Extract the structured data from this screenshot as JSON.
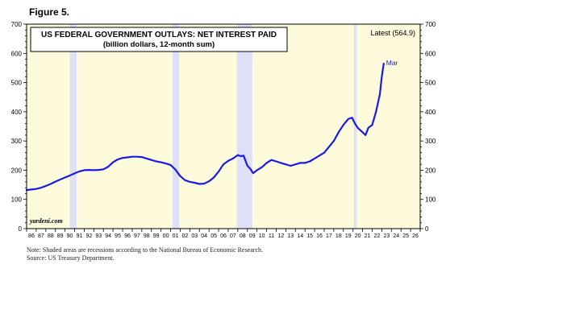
{
  "figure_label": "Figure 5.",
  "chart_data": {
    "type": "line",
    "title": "US FEDERAL GOVERNMENT OUTLAYS: NET INTEREST PAID",
    "subtitle": "(billion dollars, 12-month sum)",
    "latest_label": "Latest (564.9)",
    "end_label": "Mar",
    "watermark": "yardeni.com",
    "ylim": [
      0,
      700
    ],
    "yticks": [
      0,
      100,
      200,
      300,
      400,
      500,
      600,
      700
    ],
    "xlim": [
      1986.0,
      2027.0
    ],
    "xtick_labels": [
      "86",
      "87",
      "88",
      "89",
      "90",
      "91",
      "92",
      "93",
      "94",
      "95",
      "96",
      "97",
      "98",
      "99",
      "00",
      "01",
      "02",
      "03",
      "04",
      "05",
      "06",
      "07",
      "08",
      "09",
      "10",
      "11",
      "12",
      "13",
      "14",
      "15",
      "16",
      "17",
      "18",
      "19",
      "20",
      "21",
      "22",
      "23",
      "24",
      "25",
      "26"
    ],
    "recessions": [
      [
        1990.5,
        1991.2
      ],
      [
        2001.2,
        2001.9
      ],
      [
        2007.9,
        2009.5
      ],
      [
        2020.1,
        2020.4
      ]
    ],
    "grid": false,
    "colors": {
      "line": "#1a1ae6",
      "plot_bg": "#fdfbdc",
      "recession": "#dfe0f7",
      "frame": "#000000"
    },
    "series": [
      {
        "name": "",
        "x": [
          1986.0,
          1986.5,
          1987.0,
          1987.5,
          1988.0,
          1988.5,
          1989.0,
          1989.5,
          1990.0,
          1990.5,
          1991.0,
          1991.5,
          1992.0,
          1992.5,
          1993.0,
          1993.5,
          1994.0,
          1994.5,
          1995.0,
          1995.5,
          1996.0,
          1996.5,
          1997.0,
          1997.5,
          1998.0,
          1998.5,
          1999.0,
          1999.5,
          2000.0,
          2000.5,
          2001.0,
          2001.5,
          2002.0,
          2002.5,
          2003.0,
          2003.5,
          2004.0,
          2004.5,
          2005.0,
          2005.5,
          2006.0,
          2006.5,
          2007.0,
          2007.5,
          2008.0,
          2008.3,
          2008.6,
          2009.0,
          2009.3,
          2009.6,
          2010.0,
          2010.5,
          2011.0,
          2011.5,
          2012.0,
          2012.5,
          2013.0,
          2013.5,
          2014.0,
          2014.5,
          2015.0,
          2015.5,
          2016.0,
          2016.5,
          2017.0,
          2017.5,
          2018.0,
          2018.5,
          2019.0,
          2019.5,
          2019.9,
          2020.2,
          2020.5,
          2021.0,
          2021.3,
          2021.6,
          2022.0,
          2022.4,
          2022.8,
          2023.0,
          2023.2
        ],
        "values": [
          132,
          134,
          136,
          140,
          146,
          153,
          161,
          168,
          175,
          182,
          189,
          196,
          200,
          201,
          200,
          201,
          203,
          212,
          227,
          237,
          242,
          244,
          246,
          246,
          245,
          240,
          235,
          230,
          227,
          223,
          218,
          202,
          180,
          166,
          160,
          157,
          153,
          154,
          162,
          175,
          195,
          220,
          232,
          240,
          252,
          248,
          250,
          215,
          205,
          190,
          200,
          210,
          225,
          235,
          230,
          225,
          220,
          215,
          220,
          225,
          225,
          230,
          240,
          250,
          260,
          280,
          300,
          330,
          355,
          375,
          380,
          360,
          345,
          330,
          320,
          345,
          355,
          400,
          460,
          520,
          565
        ]
      }
    ]
  },
  "notes": {
    "line1": "Note: Shaded areas are recessions according to the National Bureau of Economic Research.",
    "line2": "Source: US Treasury Department."
  }
}
